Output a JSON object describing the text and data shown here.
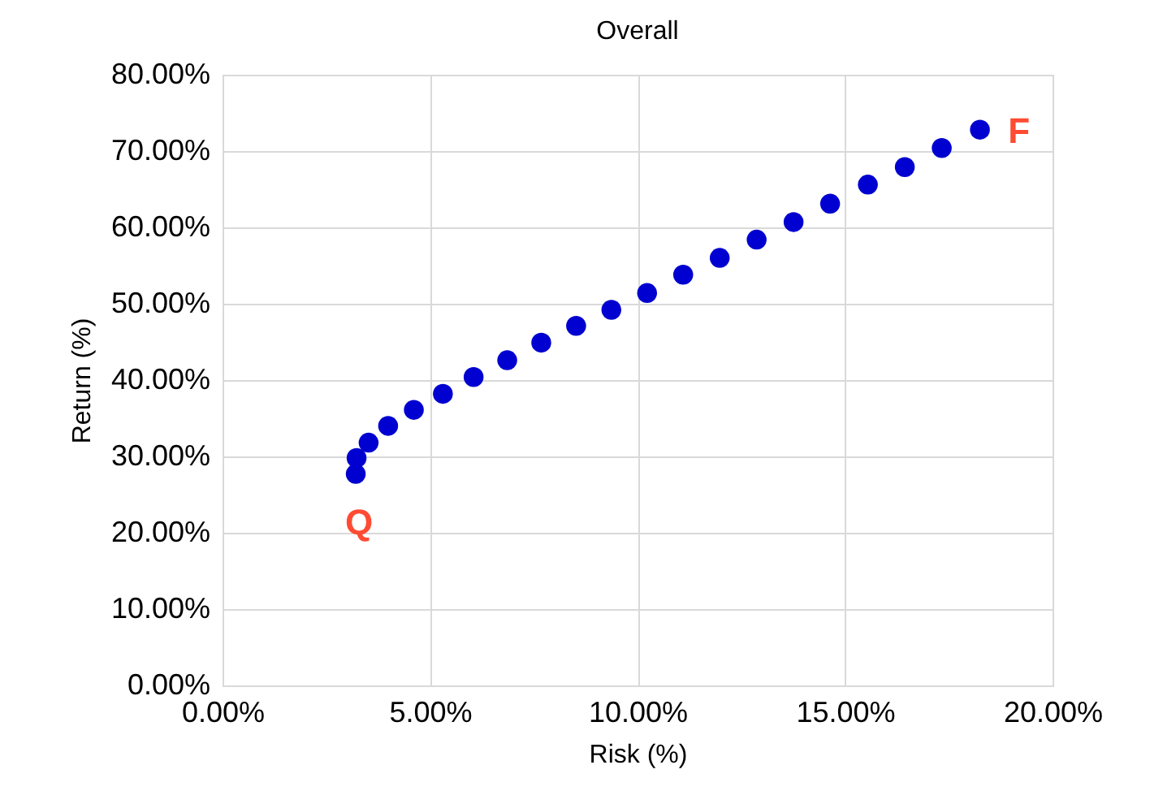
{
  "chart_data": {
    "type": "scatter",
    "title": "Overall",
    "xlabel": "Risk (%)",
    "ylabel": "Return (%)",
    "x": [
      3.21,
      3.23,
      3.52,
      3.99,
      4.61,
      5.31,
      6.05,
      6.86,
      7.68,
      8.52,
      9.37,
      10.23,
      11.1,
      11.98,
      12.87,
      13.76,
      14.64,
      15.55,
      16.44,
      17.33,
      18.25
    ],
    "series": [
      {
        "color": "#0000d0",
        "values": [
          27.7,
          29.8,
          31.8,
          34.0,
          36.1,
          38.2,
          40.4,
          42.6,
          44.9,
          47.1,
          49.2,
          51.4,
          53.8,
          56.0,
          58.4,
          60.7,
          63.1,
          65.6,
          67.9,
          70.4,
          72.8
        ]
      }
    ],
    "annotations": [
      {
        "text": "Q",
        "x": 3.21,
        "y": 27.7
      },
      {
        "text": "F",
        "x": 18.25,
        "y": 72.8
      }
    ],
    "xlim": [
      0,
      20
    ],
    "xticks": [
      {
        "value": 0,
        "label": "0.00%"
      },
      {
        "value": 5,
        "label": "5.00%"
      },
      {
        "value": 10,
        "label": "10.00%"
      },
      {
        "value": 15,
        "label": "15.00%"
      },
      {
        "value": 20,
        "label": "20.00%"
      }
    ],
    "ylim": [
      0,
      80
    ],
    "yticks": [
      {
        "value": 0,
        "label": "0.00%"
      },
      {
        "value": 10,
        "label": "10.00%"
      },
      {
        "value": 20,
        "label": "20.00%"
      },
      {
        "value": 30,
        "label": "30.00%"
      },
      {
        "value": 40,
        "label": "40.00%"
      },
      {
        "value": 50,
        "label": "50.00%"
      },
      {
        "value": 60,
        "label": "60.00%"
      },
      {
        "value": 70,
        "label": "70.00%"
      },
      {
        "value": 80,
        "label": "80.00%"
      }
    ],
    "grid": true,
    "marker": "circle"
  }
}
